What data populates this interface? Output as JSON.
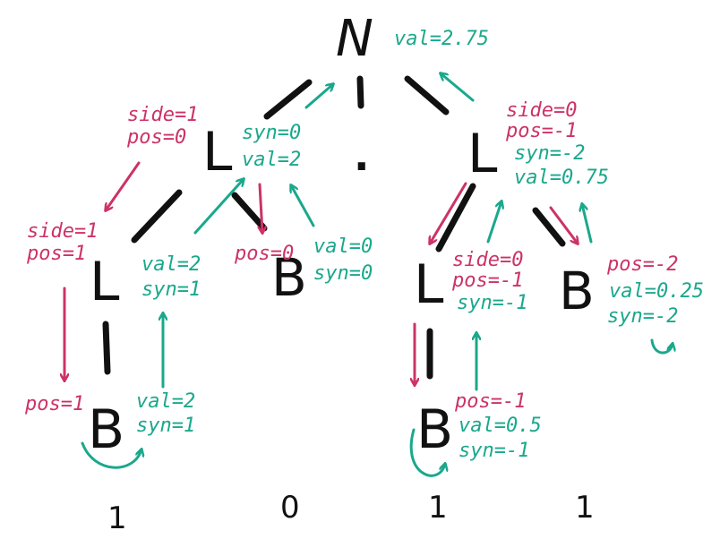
{
  "colors": {
    "inherited": "#cc3366",
    "synthesized": "#1aa88c",
    "tree": "#111111"
  },
  "root": {
    "symbol": "N",
    "val": "val=2.75"
  },
  "dot": ".",
  "left_L": {
    "symbol": "L",
    "side": "side=1",
    "pos": "pos=0",
    "syn": "syn=0",
    "val": "val=2"
  },
  "left_L2": {
    "symbol": "L",
    "side": "side=1",
    "pos": "pos=1",
    "val": "val=2",
    "syn": "syn=1"
  },
  "left_B_bottom": {
    "symbol": "B",
    "pos": "pos=1",
    "val": "val=2",
    "syn": "syn=1"
  },
  "left_B_mid": {
    "symbol": "B",
    "pos": "pos=0",
    "val": "val=0",
    "syn": "syn=0"
  },
  "right_L": {
    "symbol": "L",
    "side": "side=0",
    "pos": "pos=-1",
    "syn": "syn=-2",
    "val": "val=0.75"
  },
  "right_L2": {
    "symbol": "L",
    "side": "side=0",
    "pos": "pos=-1",
    "syn": "syn=-1"
  },
  "right_B_bottom": {
    "symbol": "B",
    "pos": "pos=-1",
    "val": "val=0.5",
    "syn": "syn=-1"
  },
  "right_B_mid": {
    "symbol": "B",
    "pos": "pos=-2",
    "val": "val=0.25",
    "syn": "syn=-2"
  },
  "leaves": [
    "1",
    "0",
    "1",
    "1"
  ]
}
